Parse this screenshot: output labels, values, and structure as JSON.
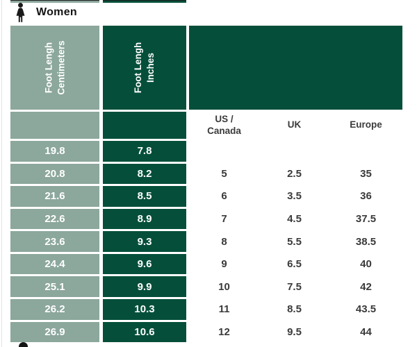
{
  "colors": {
    "sage": "#8CA79C",
    "dark_green": "#054F3A",
    "header_text": "#FFFFFF",
    "body_text": "#3A3A3A",
    "title_text": "#141414"
  },
  "section": {
    "title": "Women",
    "icon": "woman-icon"
  },
  "table": {
    "rotated_headers": [
      {
        "lines": [
          "Foot Lengh",
          "Centimeters"
        ],
        "style": "sage"
      },
      {
        "lines": [
          "Foot Lengh",
          "Inches"
        ],
        "style": "dark"
      }
    ],
    "size_headers": [
      {
        "lines": [
          "US /",
          "Canada"
        ]
      },
      {
        "lines": [
          "UK"
        ]
      },
      {
        "lines": [
          "Europe"
        ]
      }
    ],
    "rows": [
      {
        "cm": "19.8",
        "inch": "7.8",
        "us": "",
        "uk": "",
        "eu": ""
      },
      {
        "cm": "20.8",
        "inch": "8.2",
        "us": "5",
        "uk": "2.5",
        "eu": "35"
      },
      {
        "cm": "21.6",
        "inch": "8.5",
        "us": "6",
        "uk": "3.5",
        "eu": "36"
      },
      {
        "cm": "22.6",
        "inch": "8.9",
        "us": "7",
        "uk": "4.5",
        "eu": "37.5"
      },
      {
        "cm": "23.6",
        "inch": "9.3",
        "us": "8",
        "uk": "5.5",
        "eu": "38.5"
      },
      {
        "cm": "24.4",
        "inch": "9.6",
        "us": "9",
        "uk": "6.5",
        "eu": "40"
      },
      {
        "cm": "25.1",
        "inch": "9.9",
        "us": "10",
        "uk": "7.5",
        "eu": "42"
      },
      {
        "cm": "26.2",
        "inch": "10.3",
        "us": "11",
        "uk": "8.5",
        "eu": "43.5"
      },
      {
        "cm": "26.9",
        "inch": "10.6",
        "us": "12",
        "uk": "9.5",
        "eu": "44"
      }
    ]
  }
}
